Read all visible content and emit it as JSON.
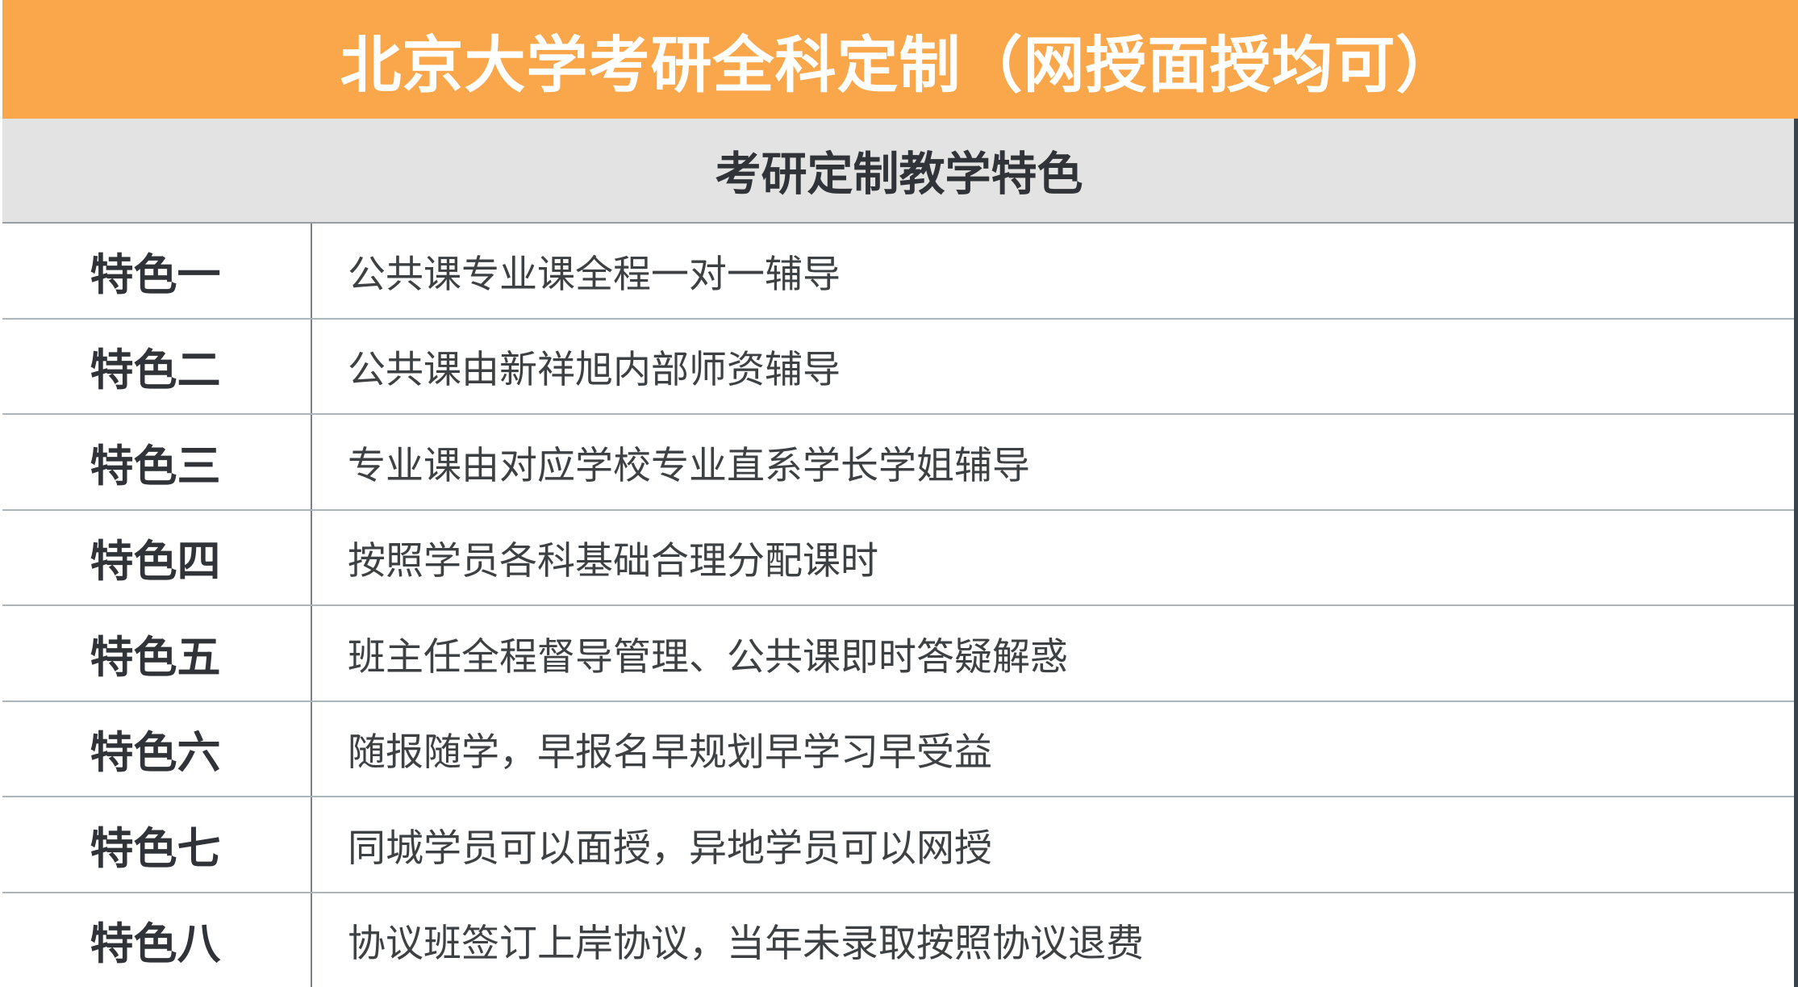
{
  "header": {
    "title": "北京大学考研全科定制（网授面授均可）"
  },
  "subheader": {
    "title": "考研定制教学特色"
  },
  "features": [
    {
      "label": "特色一",
      "description": "公共课专业课全程一对一辅导"
    },
    {
      "label": "特色二",
      "description": "公共课由新祥旭内部师资辅导"
    },
    {
      "label": "特色三",
      "description": "专业课由对应学校专业直系学长学姐辅导"
    },
    {
      "label": "特色四",
      "description": "按照学员各科基础合理分配课时"
    },
    {
      "label": "特色五",
      "description": "班主任全程督导管理、公共课即时答疑解惑"
    },
    {
      "label": "特色六",
      "description": "随报随学，早报名早规划早学习早受益"
    },
    {
      "label": "特色七",
      "description": "同城学员可以面授，异地学员可以网授"
    },
    {
      "label": "特色八",
      "description": "协议班签订上岸协议，当年未录取按照协议退费"
    }
  ],
  "colors": {
    "header-bg": "#FAA74B",
    "header-text": "#FFFFFF",
    "subheader-bg": "#E3E3E3",
    "subheader-border": "#97A0A6",
    "text-dark": "#303438",
    "text-desc": "#3E4144",
    "row-border": "#ADB5BA",
    "column-border": "#76818B",
    "right-edge": "#3A424B"
  }
}
